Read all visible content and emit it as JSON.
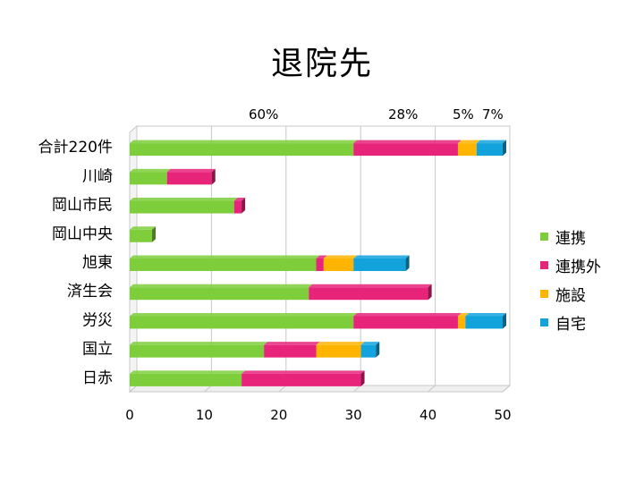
{
  "title": "退院先",
  "percent_labels": [
    "60%",
    "28%",
    "5%",
    "7%"
  ],
  "chart_data": {
    "type": "bar",
    "orientation": "horizontal",
    "stacked": true,
    "categories": [
      "合計220件",
      "川崎",
      "岡山市民",
      "岡山中央",
      "旭東",
      "済生会",
      "労災",
      "国立",
      "日赤"
    ],
    "series": [
      {
        "name": "連携",
        "color": "#7dce3a",
        "values": [
          30,
          5,
          14,
          3,
          25,
          24,
          30,
          18,
          15
        ]
      },
      {
        "name": "連携外",
        "color": "#e8237a",
        "values": [
          14,
          6,
          1,
          0,
          1,
          16,
          14,
          7,
          16
        ]
      },
      {
        "name": "施設",
        "color": "#ffb400",
        "values": [
          2.5,
          0,
          0,
          0,
          4,
          0,
          1,
          6,
          0
        ]
      },
      {
        "name": "自宅",
        "color": "#13a3dc",
        "values": [
          3.5,
          0,
          0,
          0,
          7,
          0,
          5,
          2,
          0
        ]
      }
    ],
    "x_ticks": [
      "0",
      "10",
      "20",
      "30",
      "40",
      "50"
    ],
    "xlim": [
      0,
      50
    ],
    "grid": true,
    "legend_position": "right"
  }
}
